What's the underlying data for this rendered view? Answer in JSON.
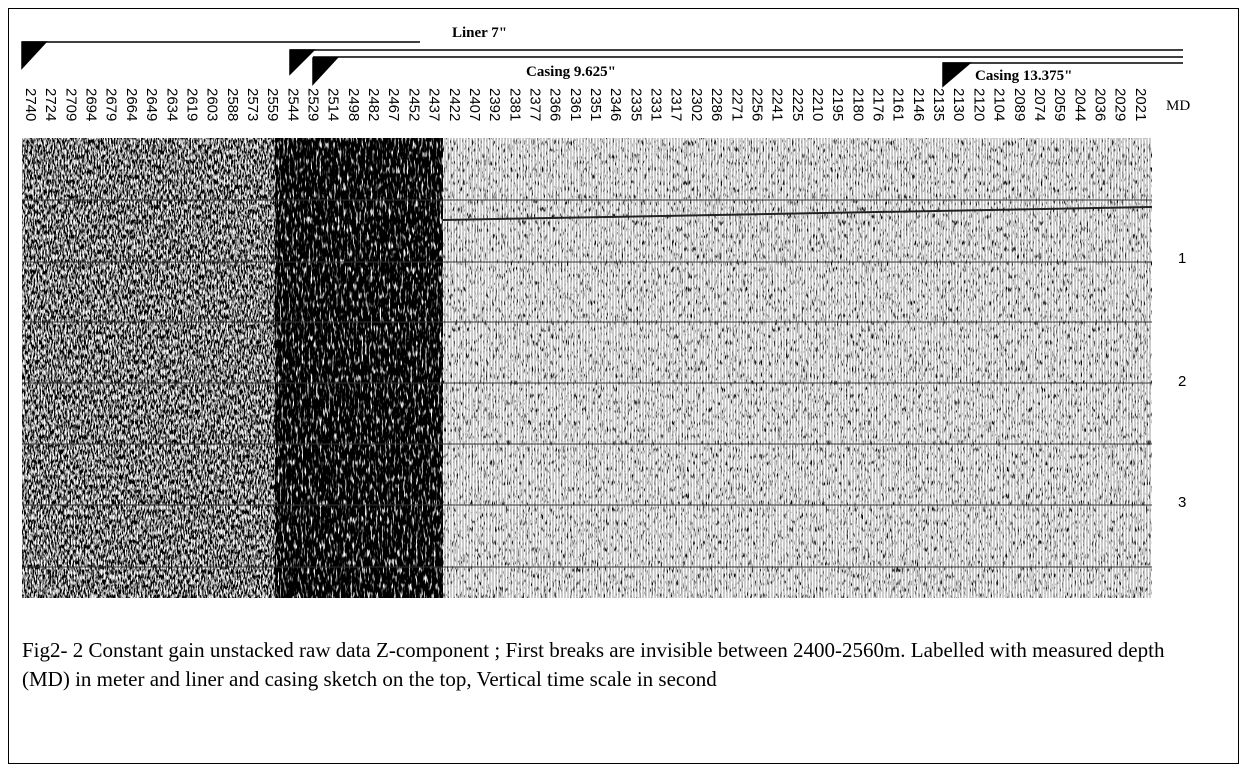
{
  "sketch": {
    "liner": "Liner 7\"",
    "casing_1": "Casing 9.625\"",
    "casing_2": "Casing 13.375\""
  },
  "depth_axis": {
    "label": "MD",
    "labels": [
      "2740",
      "2724",
      "2709",
      "2694",
      "2679",
      "2664",
      "2649",
      "2634",
      "2619",
      "2603",
      "2588",
      "2573",
      "2559",
      "2544",
      "2529",
      "2514",
      "2498",
      "2482",
      "2467",
      "2452",
      "2437",
      "2422",
      "2407",
      "2392",
      "2381",
      "2377",
      "2366",
      "2361",
      "2351",
      "2346",
      "2335",
      "2331",
      "2317",
      "2302",
      "2286",
      "2271",
      "2256",
      "2241",
      "2225",
      "2210",
      "2195",
      "2180",
      "2176",
      "2161",
      "2146",
      "2135",
      "2130",
      "2120",
      "2104",
      "2089",
      "2074",
      "2059",
      "2044",
      "2036",
      "2029",
      "2021"
    ]
  },
  "time_axis": {
    "labels": [
      "1",
      "2",
      "3"
    ]
  },
  "caption": "Fig2- 2  Constant gain unstacked raw data Z-component ; First breaks are invisible between 2400-2560m. Labelled with measured depth (MD) in meter and liner and casing sketch on the top, Vertical time scale in second"
}
